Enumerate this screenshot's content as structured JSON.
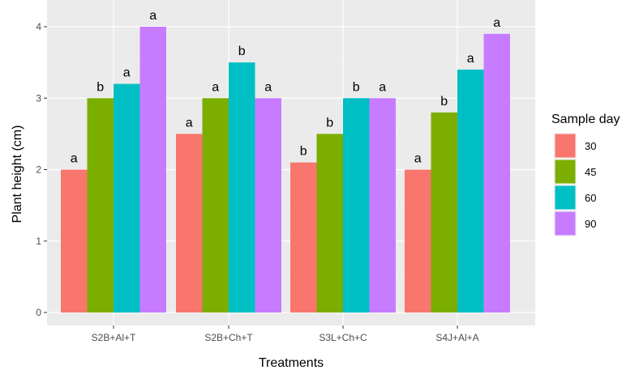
{
  "chart_data": {
    "type": "bar",
    "xlabel": "Treatments",
    "ylabel": "Plant height (cm)",
    "ylim": [
      0,
      4
    ],
    "yticks": [
      0,
      1,
      2,
      3,
      4
    ],
    "grid": true,
    "legend_position": "right",
    "categories": [
      "S2B+Al+T",
      "S2B+Ch+T",
      "S3L+Ch+C",
      "S4J+Al+A"
    ],
    "legend": {
      "title": "Sample day"
    },
    "series": [
      {
        "name": "30",
        "color": "#F8766D",
        "values": [
          2.0,
          2.5,
          2.1,
          2.0
        ],
        "labels": [
          "a",
          "a",
          "b",
          "a"
        ]
      },
      {
        "name": "45",
        "color": "#7CAE00",
        "values": [
          3.0,
          3.0,
          2.5,
          2.8
        ],
        "labels": [
          "b",
          "a",
          "b",
          "b"
        ]
      },
      {
        "name": "60",
        "color": "#00BFC4",
        "values": [
          3.2,
          3.5,
          3.0,
          3.4
        ],
        "labels": [
          "a",
          "b",
          "b",
          "a"
        ]
      },
      {
        "name": "90",
        "color": "#C77CFF",
        "values": [
          4.0,
          3.0,
          3.0,
          3.9
        ],
        "labels": [
          "a",
          "a",
          "a",
          "a"
        ]
      }
    ]
  }
}
